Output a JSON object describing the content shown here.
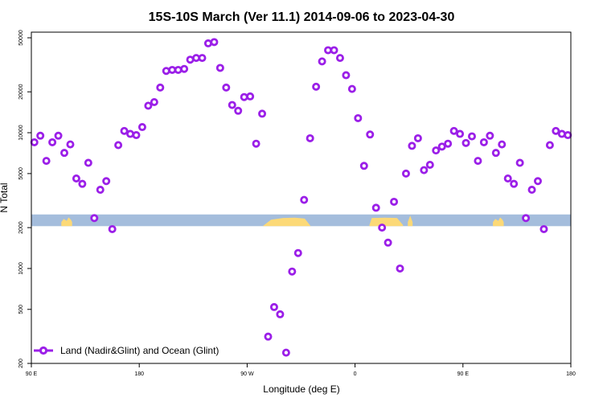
{
  "chart_data": {
    "type": "scatter",
    "title": "15S-10S March (Ver 11.1)   2014-09-06 to 2023-04-30",
    "xlabel": "Longitude (deg E)",
    "ylabel": "N Total",
    "x_ticks": [
      {
        "value": 90,
        "label": "90 E"
      },
      {
        "value": 180,
        "label": "180"
      },
      {
        "value": 270,
        "label": "90 W"
      },
      {
        "value": 360,
        "label": "0"
      },
      {
        "value": 450,
        "label": "90 E"
      },
      {
        "value": 540,
        "label": "180"
      }
    ],
    "y_ticks": [
      200,
      500,
      1000,
      2000,
      5000,
      10000,
      20000,
      50000
    ],
    "y_scale": "log",
    "xlim": [
      90,
      540
    ],
    "ylim": [
      200,
      55000
    ],
    "grid": false,
    "legend": {
      "position": "bottom-left"
    },
    "colors": {
      "series": "#9b1fe8",
      "land": "#fcd977",
      "ocean": "#a4bddc"
    },
    "band": {
      "y_low": 2050,
      "y_high": 2500
    },
    "series": [
      {
        "name": "Land (Nadir&Glint) and Ocean (Glint)",
        "points": [
          [
            92.5,
            8500
          ],
          [
            97.5,
            9500
          ],
          [
            102.5,
            6200
          ],
          [
            107.5,
            8500
          ],
          [
            112.5,
            9500
          ],
          [
            117.5,
            7100
          ],
          [
            122.5,
            8200
          ],
          [
            127.5,
            4600
          ],
          [
            132.5,
            4200
          ],
          [
            137.5,
            6000
          ],
          [
            142.5,
            2350
          ],
          [
            147.5,
            3800
          ],
          [
            152.5,
            4400
          ],
          [
            157.5,
            1950
          ],
          [
            162.5,
            8100
          ],
          [
            167.5,
            10300
          ],
          [
            172.5,
            9800
          ],
          [
            177.5,
            9600
          ],
          [
            182.5,
            11000
          ],
          [
            187.5,
            15800
          ],
          [
            192.5,
            16800
          ],
          [
            197.5,
            21500
          ],
          [
            202.5,
            28500
          ],
          [
            207.5,
            29000
          ],
          [
            212.5,
            29000
          ],
          [
            217.5,
            29500
          ],
          [
            222.5,
            34500
          ],
          [
            227.5,
            35500
          ],
          [
            232.5,
            35500
          ],
          [
            237.5,
            45500
          ],
          [
            242.5,
            46500
          ],
          [
            247.5,
            30000
          ],
          [
            252.5,
            21500
          ],
          [
            257.5,
            16000
          ],
          [
            262.5,
            14500
          ],
          [
            267.5,
            18300
          ],
          [
            272.5,
            18500
          ],
          [
            277.5,
            8300
          ],
          [
            282.5,
            13800
          ],
          [
            287.5,
            315
          ],
          [
            292.5,
            520
          ],
          [
            297.5,
            460
          ],
          [
            302.5,
            240
          ],
          [
            307.5,
            950
          ],
          [
            312.5,
            1300
          ],
          [
            317.5,
            3200
          ],
          [
            322.5,
            9100
          ],
          [
            327.5,
            21800
          ],
          [
            332.5,
            33500
          ],
          [
            337.5,
            40500
          ],
          [
            342.5,
            40500
          ],
          [
            347.5,
            35500
          ],
          [
            352.5,
            26500
          ],
          [
            357.5,
            21000
          ],
          [
            362.5,
            12800
          ],
          [
            367.5,
            5700
          ],
          [
            372.5,
            9700
          ],
          [
            377.5,
            2800
          ],
          [
            382.5,
            2000
          ],
          [
            387.5,
            1550
          ],
          [
            392.5,
            3100
          ],
          [
            397.5,
            1000
          ],
          [
            402.5,
            5000
          ],
          [
            407.5,
            8000
          ],
          [
            412.5,
            9100
          ],
          [
            417.5,
            5300
          ],
          [
            422.5,
            5800
          ],
          [
            427.5,
            7400
          ],
          [
            432.5,
            7900
          ],
          [
            437.5,
            8300
          ],
          [
            442.5,
            10300
          ],
          [
            447.5,
            9800
          ],
          [
            452.5,
            8400
          ],
          [
            457.5,
            9400
          ],
          [
            462.5,
            6200
          ],
          [
            467.5,
            8500
          ],
          [
            472.5,
            9500
          ],
          [
            477.5,
            7100
          ],
          [
            482.5,
            8200
          ],
          [
            487.5,
            4600
          ],
          [
            492.5,
            4200
          ],
          [
            497.5,
            6000
          ],
          [
            502.5,
            2350
          ],
          [
            507.5,
            3800
          ],
          [
            512.5,
            4400
          ],
          [
            517.5,
            1950
          ],
          [
            522.5,
            8100
          ],
          [
            527.5,
            10300
          ],
          [
            532.5,
            9800
          ],
          [
            537.5,
            9600
          ]
        ]
      }
    ]
  }
}
